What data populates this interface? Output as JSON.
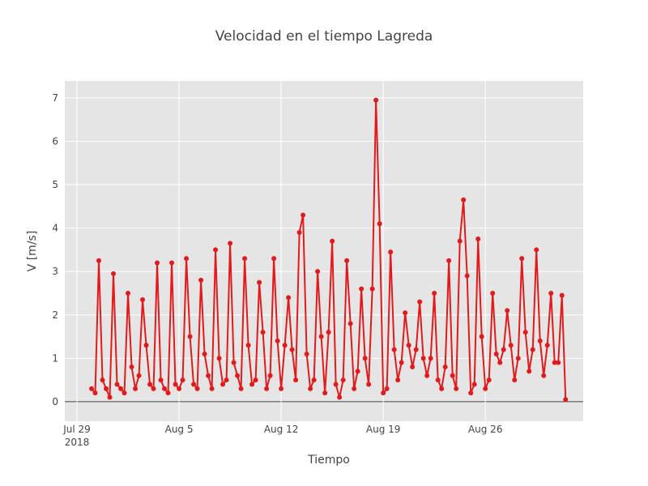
{
  "chart_data": {
    "type": "line",
    "title": "Velocidad en el tiempo Lagreda",
    "x_label": "Tiempo",
    "y_label": "V [m/s]",
    "color": "#e31a1c",
    "grid": true,
    "xlim": [
      "2018-07-28 04:00",
      "2018-09-01 17:00"
    ],
    "ylim": [
      -0.45,
      7.39
    ],
    "xticks": [
      {
        "value": "2018-07-29",
        "label": "Jul 29",
        "sublabel": "2018"
      },
      {
        "value": "2018-08-05",
        "label": "Aug 5"
      },
      {
        "value": "2018-08-12",
        "label": "Aug 12"
      },
      {
        "value": "2018-08-19",
        "label": "Aug 19"
      },
      {
        "value": "2018-08-26",
        "label": "Aug 26"
      }
    ],
    "yticks": [
      0,
      1,
      2,
      3,
      4,
      5,
      6,
      7
    ],
    "x": [
      "2018-07-30 00:00",
      "2018-07-30 06:00",
      "2018-07-30 12:00",
      "2018-07-30 18:00",
      "2018-07-31 00:00",
      "2018-07-31 06:00",
      "2018-07-31 12:00",
      "2018-07-31 18:00",
      "2018-08-01 00:00",
      "2018-08-01 06:00",
      "2018-08-01 12:00",
      "2018-08-01 18:00",
      "2018-08-02 00:00",
      "2018-08-02 06:00",
      "2018-08-02 12:00",
      "2018-08-02 18:00",
      "2018-08-03 00:00",
      "2018-08-03 06:00",
      "2018-08-03 12:00",
      "2018-08-03 18:00",
      "2018-08-04 00:00",
      "2018-08-04 06:00",
      "2018-08-04 12:00",
      "2018-08-04 18:00",
      "2018-08-05 00:00",
      "2018-08-05 06:00",
      "2018-08-05 12:00",
      "2018-08-05 18:00",
      "2018-08-06 00:00",
      "2018-08-06 06:00",
      "2018-08-06 12:00",
      "2018-08-06 18:00",
      "2018-08-07 00:00",
      "2018-08-07 06:00",
      "2018-08-07 12:00",
      "2018-08-07 18:00",
      "2018-08-08 00:00",
      "2018-08-08 06:00",
      "2018-08-08 12:00",
      "2018-08-08 18:00",
      "2018-08-09 00:00",
      "2018-08-09 06:00",
      "2018-08-09 12:00",
      "2018-08-09 18:00",
      "2018-08-10 00:00",
      "2018-08-10 06:00",
      "2018-08-10 12:00",
      "2018-08-10 18:00",
      "2018-08-11 00:00",
      "2018-08-11 06:00",
      "2018-08-11 12:00",
      "2018-08-11 18:00",
      "2018-08-12 00:00",
      "2018-08-12 06:00",
      "2018-08-12 12:00",
      "2018-08-12 18:00",
      "2018-08-13 00:00",
      "2018-08-13 06:00",
      "2018-08-13 12:00",
      "2018-08-13 18:00",
      "2018-08-14 00:00",
      "2018-08-14 06:00",
      "2018-08-14 12:00",
      "2018-08-14 18:00",
      "2018-08-15 00:00",
      "2018-08-15 06:00",
      "2018-08-15 12:00",
      "2018-08-15 18:00",
      "2018-08-16 00:00",
      "2018-08-16 06:00",
      "2018-08-16 12:00",
      "2018-08-16 18:00",
      "2018-08-17 00:00",
      "2018-08-17 06:00",
      "2018-08-17 12:00",
      "2018-08-17 18:00",
      "2018-08-18 00:00",
      "2018-08-18 06:00",
      "2018-08-18 12:00",
      "2018-08-18 18:00",
      "2018-08-19 00:00",
      "2018-08-19 06:00",
      "2018-08-19 12:00",
      "2018-08-19 18:00",
      "2018-08-20 00:00",
      "2018-08-20 06:00",
      "2018-08-20 12:00",
      "2018-08-20 18:00",
      "2018-08-21 00:00",
      "2018-08-21 06:00",
      "2018-08-21 12:00",
      "2018-08-21 18:00",
      "2018-08-22 00:00",
      "2018-08-22 06:00",
      "2018-08-22 12:00",
      "2018-08-22 18:00",
      "2018-08-23 00:00",
      "2018-08-23 06:00",
      "2018-08-23 12:00",
      "2018-08-23 18:00",
      "2018-08-24 00:00",
      "2018-08-24 06:00",
      "2018-08-24 12:00",
      "2018-08-24 18:00",
      "2018-08-25 00:00",
      "2018-08-25 06:00",
      "2018-08-25 12:00",
      "2018-08-25 18:00",
      "2018-08-26 00:00",
      "2018-08-26 06:00",
      "2018-08-26 12:00",
      "2018-08-26 18:00",
      "2018-08-27 00:00",
      "2018-08-27 06:00",
      "2018-08-27 12:00",
      "2018-08-27 18:00",
      "2018-08-28 00:00",
      "2018-08-28 06:00",
      "2018-08-28 12:00",
      "2018-08-28 18:00",
      "2018-08-29 00:00",
      "2018-08-29 06:00",
      "2018-08-29 12:00",
      "2018-08-29 18:00",
      "2018-08-30 00:00",
      "2018-08-30 06:00",
      "2018-08-30 12:00",
      "2018-08-30 18:00",
      "2018-08-31 00:00",
      "2018-08-31 06:00",
      "2018-08-31 12:00"
    ],
    "values": [
      0.3,
      0.2,
      3.25,
      0.5,
      0.3,
      0.1,
      2.95,
      0.4,
      0.3,
      0.2,
      2.5,
      0.8,
      0.3,
      0.6,
      2.35,
      1.3,
      0.4,
      0.3,
      3.2,
      0.5,
      0.3,
      0.2,
      3.2,
      0.4,
      0.3,
      0.5,
      3.3,
      1.5,
      0.4,
      0.3,
      2.8,
      1.1,
      0.6,
      0.3,
      3.5,
      1.0,
      0.4,
      0.5,
      3.65,
      0.9,
      0.6,
      0.3,
      3.3,
      1.3,
      0.4,
      0.5,
      2.75,
      1.6,
      0.3,
      0.6,
      3.3,
      1.4,
      0.3,
      1.3,
      2.4,
      1.2,
      0.5,
      3.9,
      4.3,
      1.1,
      0.3,
      0.5,
      3.0,
      1.5,
      0.2,
      1.6,
      3.7,
      0.4,
      0.1,
      0.5,
      3.25,
      1.8,
      0.3,
      0.7,
      2.6,
      1.0,
      0.4,
      2.6,
      6.95,
      4.1,
      0.2,
      0.3,
      3.45,
      1.2,
      0.5,
      0.9,
      2.05,
      1.3,
      0.8,
      1.2,
      2.3,
      1.0,
      0.6,
      1.0,
      2.5,
      0.5,
      0.3,
      0.8,
      3.25,
      0.6,
      0.3,
      3.7,
      4.65,
      2.9,
      0.2,
      0.4,
      3.75,
      1.5,
      0.3,
      0.5,
      2.5,
      1.1,
      0.9,
      1.2,
      2.1,
      1.3,
      0.5,
      1.0,
      3.3,
      1.6,
      0.7,
      1.2,
      3.5,
      1.4,
      0.6,
      1.3,
      2.5,
      0.9,
      0.9,
      2.45,
      0.05
    ]
  }
}
